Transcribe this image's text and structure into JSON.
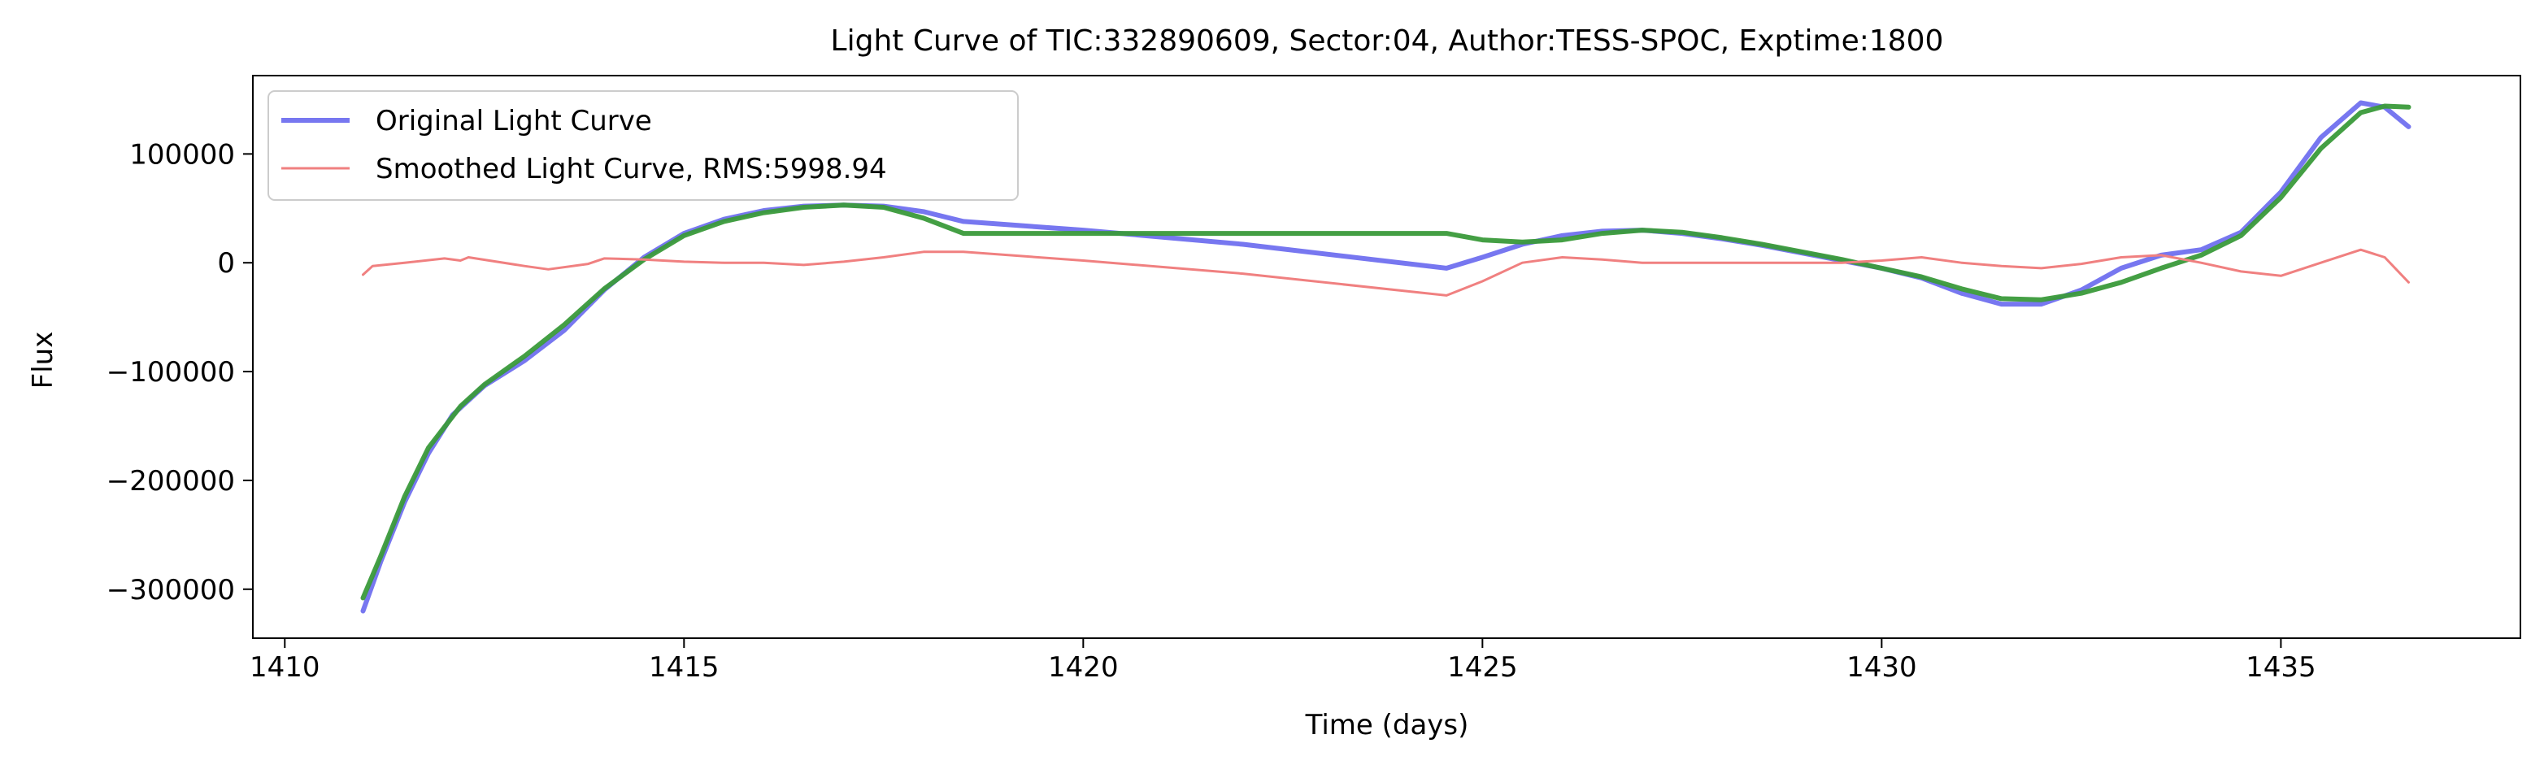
{
  "chart_data": {
    "type": "line",
    "title": "Light Curve of TIC:332890609, Sector:04, Author:TESS-SPOC, Exptime:1800",
    "xlabel": "Time (days)",
    "ylabel": "Flux",
    "xlim": [
      1409.6,
      1438.0
    ],
    "ylim": [
      -345000,
      172000
    ],
    "xticks": [
      1410,
      1415,
      1420,
      1425,
      1430,
      1435
    ],
    "xtick_labels": [
      "1410",
      "1415",
      "1420",
      "1425",
      "1430",
      "1435"
    ],
    "yticks": [
      -300000,
      -200000,
      -100000,
      0,
      100000
    ],
    "ytick_labels": [
      "−300000",
      "−200000",
      "−100000",
      "0",
      "100000"
    ],
    "grid": false,
    "legend_position": "upper-left",
    "legend": [
      {
        "label": "Original Light Curve",
        "color": "#7777f0"
      },
      {
        "label": "Smoothed Light Curve, RMS:5998.94",
        "color": "#f08080"
      }
    ],
    "series": [
      {
        "name": "Original Light Curve",
        "color": "#7777f0",
        "x": [
          1410.98,
          1411.2,
          1411.5,
          1411.8,
          1412.1,
          1412.5,
          1413.0,
          1413.5,
          1414.0,
          1414.5,
          1415.0,
          1415.5,
          1416.0,
          1416.5,
          1417.0,
          1417.5,
          1418.0,
          1418.5,
          1420.0,
          1422.0,
          1424.55,
          1425.0,
          1425.5,
          1426.0,
          1426.5,
          1427.0,
          1427.5,
          1428.0,
          1428.5,
          1429.0,
          1429.5,
          1430.0,
          1430.5,
          1431.0,
          1431.5,
          1432.0,
          1432.5,
          1433.0,
          1433.5,
          1434.0,
          1434.5,
          1435.0,
          1435.5,
          1436.0,
          1436.3,
          1436.6
        ],
        "y": [
          -320000,
          -275000,
          -220000,
          -175000,
          -140000,
          -113000,
          -90000,
          -62000,
          -25000,
          5000,
          27000,
          40000,
          48000,
          52000,
          53000,
          52000,
          47000,
          38000,
          30000,
          17000,
          -5000,
          5000,
          17000,
          25000,
          29000,
          30000,
          27000,
          22000,
          16000,
          9000,
          2000,
          -5000,
          -14000,
          -28000,
          -38000,
          -38000,
          -25000,
          -5000,
          7000,
          12000,
          28000,
          65000,
          115000,
          147000,
          143000,
          125000
        ]
      },
      {
        "name": "",
        "color": "#3a9a3a",
        "x": [
          1410.98,
          1411.2,
          1411.5,
          1411.8,
          1412.2,
          1412.5,
          1413.0,
          1413.5,
          1414.0,
          1414.5,
          1415.0,
          1415.5,
          1416.0,
          1416.5,
          1417.0,
          1417.5,
          1418.0,
          1418.5,
          1420.0,
          1422.0,
          1424.55,
          1425.0,
          1425.5,
          1426.0,
          1426.5,
          1427.0,
          1427.5,
          1428.0,
          1428.5,
          1429.0,
          1429.5,
          1430.0,
          1430.5,
          1431.0,
          1431.5,
          1432.0,
          1432.5,
          1433.0,
          1433.5,
          1434.0,
          1434.5,
          1435.0,
          1435.5,
          1436.0,
          1436.3,
          1436.6
        ],
        "y": [
          -308000,
          -270000,
          -215000,
          -170000,
          -132000,
          -112000,
          -86000,
          -57000,
          -24000,
          3000,
          25000,
          38000,
          46000,
          51000,
          53000,
          51000,
          41000,
          27000,
          27000,
          27000,
          27000,
          21000,
          19000,
          21000,
          27000,
          30000,
          28000,
          23000,
          17000,
          10000,
          3000,
          -5000,
          -13000,
          -24000,
          -33000,
          -34000,
          -28000,
          -18000,
          -5000,
          7000,
          25000,
          60000,
          105000,
          138000,
          144000,
          143000
        ]
      },
      {
        "name": "Smoothed Light Curve, RMS:5998.94",
        "color": "#f08080",
        "x": [
          1410.98,
          1411.1,
          1411.5,
          1412.0,
          1412.2,
          1412.3,
          1413.0,
          1413.3,
          1413.8,
          1414.0,
          1414.5,
          1415.0,
          1415.5,
          1416.0,
          1416.5,
          1417.0,
          1417.5,
          1418.0,
          1418.5,
          1420.0,
          1422.0,
          1424.55,
          1425.0,
          1425.5,
          1426.0,
          1426.5,
          1427.0,
          1427.5,
          1428.0,
          1428.5,
          1429.0,
          1429.5,
          1430.0,
          1430.5,
          1430.6,
          1431.0,
          1431.5,
          1432.0,
          1432.5,
          1433.0,
          1433.5,
          1434.0,
          1434.5,
          1435.0,
          1435.5,
          1436.0,
          1436.3,
          1436.6
        ],
        "y": [
          -11000,
          -3000,
          0,
          4000,
          2000,
          5000,
          -3000,
          -6000,
          -1000,
          4000,
          3000,
          1000,
          0,
          0,
          -2000,
          1000,
          5000,
          10000,
          10000,
          2000,
          -10000,
          -30000,
          -17000,
          0,
          5000,
          3000,
          0,
          0,
          0,
          0,
          0,
          0,
          2000,
          5000,
          4000,
          0,
          -3000,
          -5000,
          -1000,
          5000,
          7000,
          0,
          -8000,
          -12000,
          0,
          12000,
          5000,
          -18000
        ]
      }
    ]
  }
}
